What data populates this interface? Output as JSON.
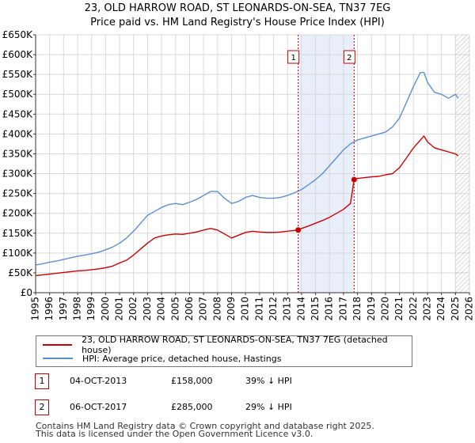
{
  "chart_data": {
    "type": "line",
    "title": "23, OLD HARROW ROAD, ST LEONARDS-ON-SEA, TN37 7EG",
    "subtitle": "Price paid vs. HM Land Registry's House Price Index (HPI)",
    "xlim": [
      1995,
      2026
    ],
    "ylim": [
      0,
      650000
    ],
    "x_ticks": [
      "1995",
      "1996",
      "1997",
      "1998",
      "1999",
      "2000",
      "2001",
      "2002",
      "2003",
      "2004",
      "2005",
      "2006",
      "2007",
      "2008",
      "2009",
      "2010",
      "2011",
      "2012",
      "2013",
      "2014",
      "2015",
      "2016",
      "2017",
      "2018",
      "2019",
      "2020",
      "2021",
      "2022",
      "2023",
      "2024",
      "2025",
      "2026"
    ],
    "y_ticks": [
      {
        "value": 0,
        "label": "£0"
      },
      {
        "value": 50000,
        "label": "£50K"
      },
      {
        "value": 100000,
        "label": "£100K"
      },
      {
        "value": 150000,
        "label": "£150K"
      },
      {
        "value": 200000,
        "label": "£200K"
      },
      {
        "value": 250000,
        "label": "£250K"
      },
      {
        "value": 300000,
        "label": "£300K"
      },
      {
        "value": 350000,
        "label": "£350K"
      },
      {
        "value": 400000,
        "label": "£400K"
      },
      {
        "value": 450000,
        "label": "£450K"
      },
      {
        "value": 500000,
        "label": "£500K"
      },
      {
        "value": 550000,
        "label": "£550K"
      },
      {
        "value": 600000,
        "label": "£600K"
      },
      {
        "value": 650000,
        "label": "£650K"
      }
    ],
    "series": [
      {
        "name": "23, OLD HARROW ROAD, ST LEONARDS-ON-SEA, TN37 7EG (detached house)",
        "color": "#cc0000",
        "x": [
          1995.0,
          1995.5,
          1996.0,
          1996.5,
          1997.0,
          1997.5,
          1998.0,
          1998.5,
          1999.0,
          1999.5,
          2000.0,
          2000.5,
          2001.0,
          2001.5,
          2002.0,
          2002.5,
          2003.0,
          2003.5,
          2004.0,
          2004.5,
          2005.0,
          2005.5,
          2006.0,
          2006.5,
          2007.0,
          2007.5,
          2008.0,
          2008.5,
          2009.0,
          2009.5,
          2010.0,
          2010.5,
          2011.0,
          2011.5,
          2012.0,
          2012.5,
          2013.0,
          2013.5,
          2013.76,
          2014.0,
          2014.5,
          2015.0,
          2015.5,
          2016.0,
          2016.5,
          2017.0,
          2017.5,
          2017.76,
          2018.0,
          2018.5,
          2019.0,
          2019.5,
          2020.0,
          2020.5,
          2021.0,
          2021.5,
          2022.0,
          2022.5,
          2022.75,
          2023.0,
          2023.5,
          2024.0,
          2024.5,
          2025.0,
          2025.2
        ],
        "y": [
          43000,
          45000,
          47000,
          49000,
          51000,
          53000,
          55000,
          56000,
          58000,
          60000,
          63000,
          67000,
          75000,
          82000,
          95000,
          110000,
          125000,
          138000,
          143000,
          146000,
          148000,
          147000,
          150000,
          153000,
          158000,
          162000,
          158000,
          148000,
          138000,
          145000,
          152000,
          155000,
          153000,
          152000,
          152000,
          153000,
          155000,
          157000,
          158000,
          162000,
          168000,
          175000,
          182000,
          190000,
          200000,
          210000,
          225000,
          285000,
          288000,
          290000,
          292000,
          293000,
          297000,
          300000,
          315000,
          340000,
          365000,
          385000,
          395000,
          380000,
          365000,
          360000,
          355000,
          350000,
          345000
        ]
      },
      {
        "name": "HPI: Average price, detached house, Hastings",
        "color": "#5b8fd4",
        "x": [
          1995.0,
          1995.5,
          1996.0,
          1996.5,
          1997.0,
          1997.5,
          1998.0,
          1998.5,
          1999.0,
          1999.5,
          2000.0,
          2000.5,
          2001.0,
          2001.5,
          2002.0,
          2002.5,
          2003.0,
          2003.5,
          2004.0,
          2004.5,
          2005.0,
          2005.5,
          2006.0,
          2006.5,
          2007.0,
          2007.5,
          2008.0,
          2008.5,
          2009.0,
          2009.5,
          2010.0,
          2010.5,
          2011.0,
          2011.5,
          2012.0,
          2012.5,
          2013.0,
          2013.5,
          2014.0,
          2014.5,
          2015.0,
          2015.5,
          2016.0,
          2016.5,
          2017.0,
          2017.5,
          2018.0,
          2018.5,
          2019.0,
          2019.5,
          2020.0,
          2020.5,
          2021.0,
          2021.5,
          2022.0,
          2022.5,
          2022.75,
          2023.0,
          2023.5,
          2024.0,
          2024.5,
          2025.0,
          2025.2
        ],
        "y": [
          70000,
          73000,
          77000,
          80000,
          84000,
          88000,
          92000,
          95000,
          98000,
          102000,
          108000,
          115000,
          125000,
          138000,
          155000,
          175000,
          195000,
          205000,
          215000,
          222000,
          225000,
          222000,
          228000,
          235000,
          245000,
          255000,
          255000,
          238000,
          225000,
          230000,
          240000,
          245000,
          240000,
          238000,
          238000,
          240000,
          245000,
          252000,
          260000,
          272000,
          285000,
          300000,
          320000,
          340000,
          360000,
          375000,
          385000,
          390000,
          395000,
          400000,
          405000,
          418000,
          440000,
          480000,
          520000,
          555000,
          555000,
          530000,
          505000,
          500000,
          490000,
          500000,
          490000
        ]
      }
    ],
    "sales": [
      {
        "id": "1",
        "x": 2013.76,
        "y": 158000,
        "date": "04-OCT-2013",
        "price": "£158,000",
        "hpi": "39% ↓ HPI"
      },
      {
        "id": "2",
        "x": 2017.76,
        "y": 285000,
        "date": "06-OCT-2017",
        "price": "£285,000",
        "hpi": "29% ↓ HPI"
      }
    ],
    "shaded_region": {
      "from": 2013.76,
      "to": 2017.76
    },
    "forecast_hatch_from": 2025.0
  },
  "legend": {
    "property": "23, OLD HARROW ROAD, ST LEONARDS-ON-SEA, TN37 7EG (detached house)",
    "hpi": "HPI: Average price, detached house, Hastings"
  },
  "footer": {
    "line1": "Contains HM Land Registry data © Crown copyright and database right 2025.",
    "line2": "This data is licensed under the Open Government Licence v3.0."
  },
  "colors": {
    "property": "#cc0000",
    "hpi": "#5b8fd4",
    "shade": "#e8eefa",
    "grid": "#d9d9d9"
  }
}
